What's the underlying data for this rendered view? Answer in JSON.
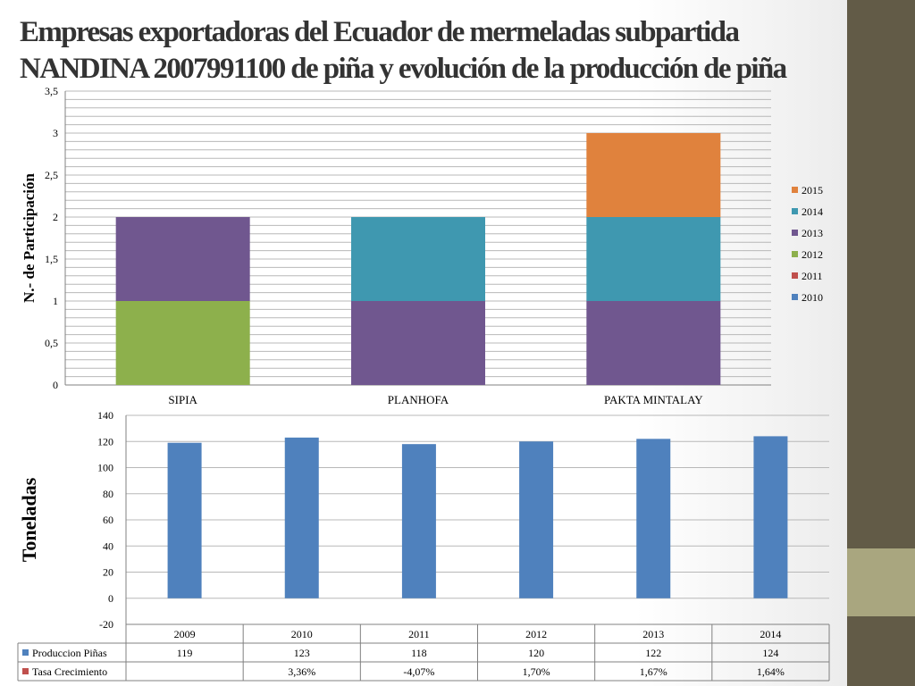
{
  "slide": {
    "title_line1": "Empresas exportadoras del Ecuador de mermeladas subpartida",
    "title_line2": "NANDINA 2007991100 de piña y evolución de la producción de piña"
  },
  "colors": {
    "side_bar": "#625b47",
    "side_accent": "#a9a67f"
  },
  "chart_data": [
    {
      "type": "bar",
      "stacked": true,
      "ylabel": "N.- de Participación",
      "ylim": [
        0,
        3.5
      ],
      "yticks": [
        "0",
        "0,5",
        "1",
        "1,5",
        "2",
        "2,5",
        "3",
        "3,5"
      ],
      "categories": [
        "SIPIA",
        "PLANHOFA",
        "PAKTA MINTALAY"
      ],
      "series": [
        {
          "name": "2010",
          "color": "#4f81bd",
          "values": [
            0,
            0,
            0
          ]
        },
        {
          "name": "2011",
          "color": "#c0504d",
          "values": [
            0,
            0,
            0
          ]
        },
        {
          "name": "2012",
          "color": "#8db04c",
          "values": [
            1,
            0,
            0
          ]
        },
        {
          "name": "2013",
          "color": "#70578f",
          "values": [
            1,
            1,
            1
          ]
        },
        {
          "name": "2014",
          "color": "#3f98b0",
          "values": [
            0,
            1,
            1
          ]
        },
        {
          "name": "2015",
          "color": "#e0823d",
          "values": [
            0,
            0,
            1
          ]
        }
      ],
      "legend_position": "right",
      "legend_order": [
        "2015",
        "2014",
        "2013",
        "2012",
        "2011",
        "2010"
      ],
      "grid": true
    },
    {
      "type": "bar",
      "ylabel": "Toneladas",
      "ylim": [
        -20,
        140
      ],
      "yticks": [
        "-20",
        "0",
        "20",
        "40",
        "60",
        "80",
        "100",
        "120",
        "140"
      ],
      "categories": [
        "2009",
        "2010",
        "2011",
        "2012",
        "2013",
        "2014"
      ],
      "series": [
        {
          "name": "Produccion Piñas",
          "color": "#4f81bd",
          "values": [
            119,
            123,
            118,
            120,
            122,
            124
          ]
        },
        {
          "name": "Tasa Crecimiento",
          "color": "#c0504d",
          "values": [
            null,
            3.36,
            -4.07,
            1.7,
            1.67,
            1.64
          ]
        }
      ],
      "data_table": {
        "rows": [
          {
            "label": "Produccion Piñas",
            "color": "#4f81bd",
            "cells": [
              "119",
              "123",
              "118",
              "120",
              "122",
              "124"
            ]
          },
          {
            "label": "Tasa Crecimiento",
            "color": "#c0504d",
            "cells": [
              "",
              "3,36%",
              "-4,07%",
              "1,70%",
              "1,67%",
              "1,64%"
            ]
          }
        ]
      },
      "grid": true
    }
  ]
}
